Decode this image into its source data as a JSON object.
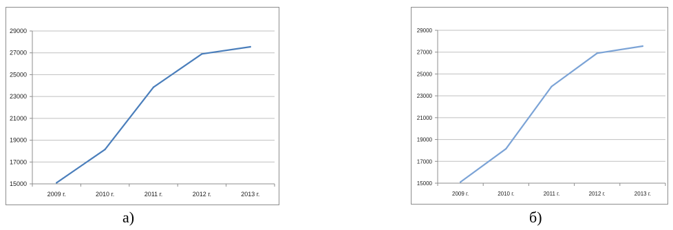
{
  "panel_labels": {
    "a": "а)",
    "b": "б)"
  },
  "colors": {
    "line_a": "#4a7ebb",
    "line_b": "#7ba3d6",
    "grid": "#bfbfbf",
    "axis": "#8c8c8c",
    "text": "#1a1a1a"
  },
  "chart_data": [
    {
      "type": "line",
      "categories": [
        "2009 г.",
        "2010 г.",
        "2011 г.",
        "2012 г.",
        "2013 г."
      ],
      "series": [
        {
          "values": [
            15100,
            18150,
            23850,
            26900,
            27550
          ]
        }
      ],
      "yticks": [
        "15000",
        "17000",
        "19000",
        "21000",
        "23000",
        "25000",
        "27000",
        "29000"
      ],
      "ylim": [
        15000,
        29000
      ],
      "grid": true
    },
    {
      "type": "line",
      "categories": [
        "2009 г.",
        "2010 г.",
        "2011 г.",
        "2012 г.",
        "2013 г."
      ],
      "series": [
        {
          "values": [
            15100,
            18150,
            23850,
            26900,
            27550
          ]
        }
      ],
      "yticks": [
        "15000",
        "17000",
        "19000",
        "21000",
        "23000",
        "25000",
        "27000",
        "29000"
      ],
      "ylim": [
        15000,
        29000
      ],
      "grid": true
    }
  ]
}
